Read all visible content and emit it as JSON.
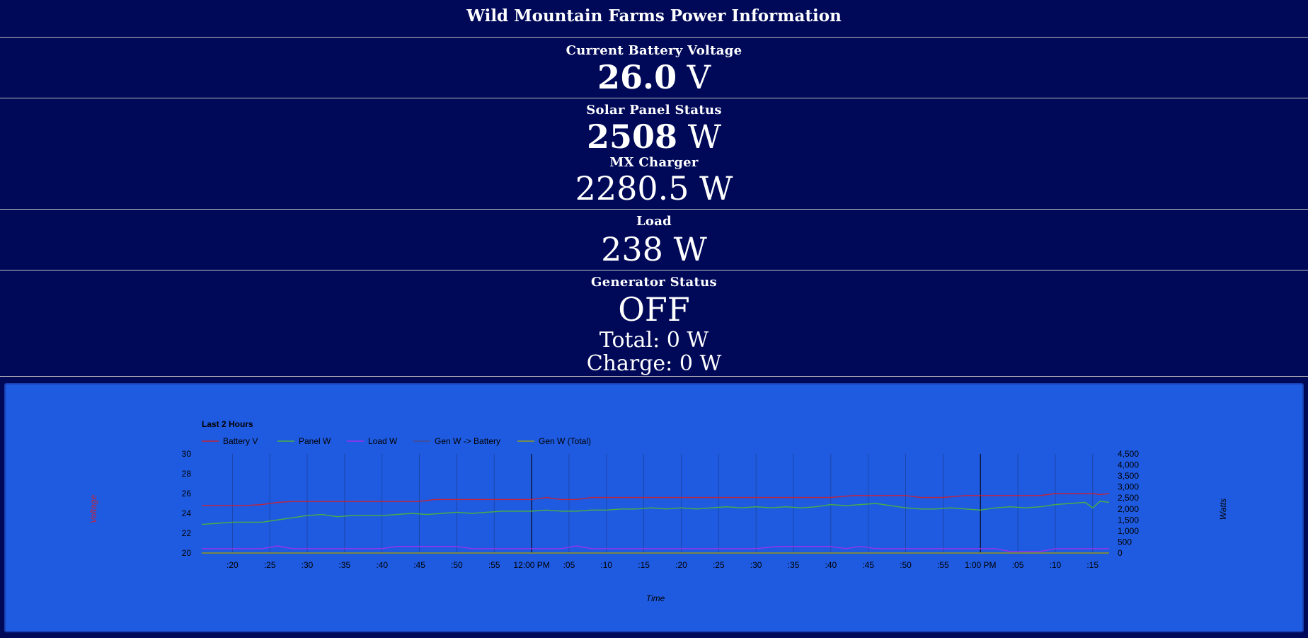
{
  "header": {
    "title": "Wild Mountain Farms Power Information"
  },
  "battery": {
    "label": "Current Battery Voltage",
    "value": "26.0",
    "unit": "V"
  },
  "solar": {
    "label": "Solar Panel Status",
    "value": "2508",
    "unit": "W",
    "charger_label": "MX Charger",
    "charger_value": "2280.5 W"
  },
  "load": {
    "label": "Load",
    "value": "238 W"
  },
  "generator": {
    "label": "Generator Status",
    "status": "OFF",
    "total": "Total: 0 W",
    "charge": "Charge: 0 W"
  },
  "chart_data": {
    "type": "line",
    "title": "Last 2 Hours",
    "xlabel": "Time",
    "ylabel_left": "Voltage",
    "ylabel_right": "Watts",
    "grid": true,
    "legend_position": "top-left",
    "x_range": [
      15.9,
      137.2
    ],
    "x_major": [
      60,
      120
    ],
    "x_ticks": [
      {
        "t": 20,
        "label": ":20"
      },
      {
        "t": 25,
        "label": ":25"
      },
      {
        "t": 30,
        "label": ":30"
      },
      {
        "t": 35,
        "label": ":35"
      },
      {
        "t": 40,
        "label": ":40"
      },
      {
        "t": 45,
        "label": ":45"
      },
      {
        "t": 50,
        "label": ":50"
      },
      {
        "t": 55,
        "label": ":55"
      },
      {
        "t": 60,
        "label": "12:00 PM"
      },
      {
        "t": 65,
        "label": ":05"
      },
      {
        "t": 70,
        "label": ":10"
      },
      {
        "t": 75,
        "label": ":15"
      },
      {
        "t": 80,
        "label": ":20"
      },
      {
        "t": 85,
        "label": ":25"
      },
      {
        "t": 90,
        "label": ":30"
      },
      {
        "t": 95,
        "label": ":35"
      },
      {
        "t": 100,
        "label": ":40"
      },
      {
        "t": 105,
        "label": ":45"
      },
      {
        "t": 110,
        "label": ":50"
      },
      {
        "t": 115,
        "label": ":55"
      },
      {
        "t": 120,
        "label": "1:00 PM"
      },
      {
        "t": 125,
        "label": ":05"
      },
      {
        "t": 130,
        "label": ":10"
      },
      {
        "t": 135,
        "label": ":15"
      }
    ],
    "y_left_range": [
      20,
      30
    ],
    "y_left_ticks": [
      "20",
      "22",
      "24",
      "26",
      "28",
      "30"
    ],
    "y_right_range": [
      0,
      4500
    ],
    "y_right_ticks": [
      "0",
      "500",
      "1,000",
      "1,500",
      "2,000",
      "2,500",
      "3,000",
      "3,500",
      "4,000",
      "4,500"
    ],
    "series": [
      {
        "name": "Battery V",
        "axis": "left",
        "color": "#c2233b",
        "points": [
          [
            15.9,
            24.8
          ],
          [
            20,
            24.8
          ],
          [
            22,
            24.8
          ],
          [
            24,
            24.9
          ],
          [
            26,
            25.1
          ],
          [
            28,
            25.2
          ],
          [
            30,
            25.2
          ],
          [
            35,
            25.2
          ],
          [
            40,
            25.2
          ],
          [
            45,
            25.2
          ],
          [
            47,
            25.4
          ],
          [
            50,
            25.4
          ],
          [
            55,
            25.4
          ],
          [
            60,
            25.4
          ],
          [
            62,
            25.6
          ],
          [
            64,
            25.4
          ],
          [
            66,
            25.4
          ],
          [
            68,
            25.6
          ],
          [
            70,
            25.6
          ],
          [
            75,
            25.6
          ],
          [
            80,
            25.6
          ],
          [
            85,
            25.6
          ],
          [
            90,
            25.6
          ],
          [
            95,
            25.6
          ],
          [
            100,
            25.6
          ],
          [
            103,
            25.8
          ],
          [
            106,
            25.8
          ],
          [
            110,
            25.8
          ],
          [
            112,
            25.6
          ],
          [
            115,
            25.6
          ],
          [
            118,
            25.8
          ],
          [
            120,
            25.8
          ],
          [
            125,
            25.8
          ],
          [
            128,
            25.8
          ],
          [
            130,
            26.0
          ],
          [
            132,
            26.0
          ],
          [
            135,
            26.0
          ],
          [
            136,
            25.9
          ],
          [
            137.2,
            26.0
          ]
        ]
      },
      {
        "name": "Panel W",
        "axis": "right",
        "color": "#48b040",
        "points": [
          [
            15.9,
            1300
          ],
          [
            18,
            1350
          ],
          [
            20,
            1400
          ],
          [
            22,
            1400
          ],
          [
            24,
            1400
          ],
          [
            26,
            1500
          ],
          [
            28,
            1600
          ],
          [
            30,
            1700
          ],
          [
            32,
            1750
          ],
          [
            34,
            1650
          ],
          [
            36,
            1700
          ],
          [
            38,
            1700
          ],
          [
            40,
            1700
          ],
          [
            42,
            1750
          ],
          [
            44,
            1800
          ],
          [
            46,
            1750
          ],
          [
            48,
            1800
          ],
          [
            50,
            1850
          ],
          [
            52,
            1800
          ],
          [
            54,
            1850
          ],
          [
            56,
            1900
          ],
          [
            58,
            1900
          ],
          [
            60,
            1900
          ],
          [
            62,
            1950
          ],
          [
            64,
            1900
          ],
          [
            66,
            1900
          ],
          [
            68,
            1950
          ],
          [
            70,
            1950
          ],
          [
            72,
            2000
          ],
          [
            74,
            2000
          ],
          [
            76,
            2050
          ],
          [
            78,
            2000
          ],
          [
            80,
            2050
          ],
          [
            82,
            2000
          ],
          [
            84,
            2050
          ],
          [
            86,
            2100
          ],
          [
            88,
            2050
          ],
          [
            90,
            2100
          ],
          [
            92,
            2050
          ],
          [
            94,
            2100
          ],
          [
            96,
            2050
          ],
          [
            98,
            2100
          ],
          [
            100,
            2200
          ],
          [
            102,
            2150
          ],
          [
            104,
            2200
          ],
          [
            106,
            2250
          ],
          [
            108,
            2150
          ],
          [
            110,
            2050
          ],
          [
            112,
            2000
          ],
          [
            114,
            2000
          ],
          [
            116,
            2050
          ],
          [
            118,
            2000
          ],
          [
            120,
            1950
          ],
          [
            122,
            2050
          ],
          [
            124,
            2100
          ],
          [
            126,
            2050
          ],
          [
            128,
            2100
          ],
          [
            130,
            2200
          ],
          [
            132,
            2250
          ],
          [
            134,
            2300
          ],
          [
            135,
            2050
          ],
          [
            136,
            2350
          ],
          [
            137.2,
            2300
          ]
        ]
      },
      {
        "name": "Load W",
        "axis": "right",
        "color": "#9b30f0",
        "points": [
          [
            15.9,
            200
          ],
          [
            20,
            200
          ],
          [
            24,
            200
          ],
          [
            26,
            320
          ],
          [
            28,
            200
          ],
          [
            30,
            200
          ],
          [
            35,
            200
          ],
          [
            40,
            200
          ],
          [
            42,
            300
          ],
          [
            45,
            300
          ],
          [
            50,
            300
          ],
          [
            52,
            200
          ],
          [
            55,
            200
          ],
          [
            60,
            200
          ],
          [
            64,
            200
          ],
          [
            66,
            320
          ],
          [
            68,
            200
          ],
          [
            70,
            200
          ],
          [
            75,
            200
          ],
          [
            80,
            200
          ],
          [
            85,
            200
          ],
          [
            90,
            200
          ],
          [
            93,
            300
          ],
          [
            96,
            300
          ],
          [
            100,
            300
          ],
          [
            102,
            200
          ],
          [
            104,
            300
          ],
          [
            106,
            200
          ],
          [
            110,
            200
          ],
          [
            115,
            200
          ],
          [
            120,
            200
          ],
          [
            122,
            200
          ],
          [
            124,
            70
          ],
          [
            126,
            70
          ],
          [
            128,
            70
          ],
          [
            130,
            200
          ],
          [
            135,
            200
          ],
          [
            137.2,
            200
          ]
        ]
      },
      {
        "name": "Gen W -> Battery",
        "axis": "right",
        "color": "#4a4a8a",
        "points": [
          [
            15.9,
            0
          ],
          [
            137.2,
            0
          ]
        ]
      },
      {
        "name": "Gen W (Total)",
        "axis": "right",
        "color": "#8f9a20",
        "points": [
          [
            15.9,
            0
          ],
          [
            137.2,
            0
          ]
        ]
      }
    ]
  }
}
